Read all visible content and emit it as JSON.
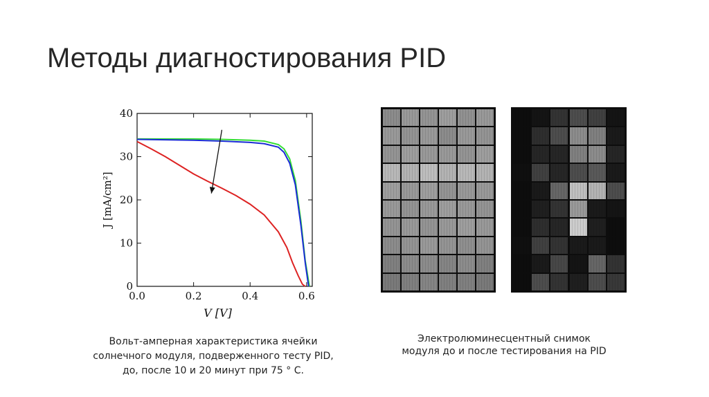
{
  "slide": {
    "title": "Методы диагностирования PID"
  },
  "captions": {
    "left_lines": [
      "Вольт-амперная характеристика ячейки",
      "солнечного модуля, подверженного тесту PID,",
      "до, после 10 и 20 минут при 75 ° С."
    ],
    "right_lines": [
      "Электролюминесцентный снимок",
      "модуля до и после тестирования на PID"
    ]
  },
  "chart_data": {
    "type": "line",
    "xlabel": "V [V]",
    "ylabel": "J [mA/cm²]",
    "xlim": [
      0.0,
      0.62
    ],
    "ylim": [
      0,
      40
    ],
    "x_ticks": [
      "0.0",
      "0.2",
      "0.4",
      "0.6"
    ],
    "y_ticks": [
      "0",
      "10",
      "20",
      "30",
      "40"
    ],
    "grid": false,
    "legend": "none",
    "annotation": "arrow from upper curves toward lower curve",
    "series": [
      {
        "color": "#33dd33",
        "x": [
          0.0,
          0.1,
          0.2,
          0.3,
          0.4,
          0.45,
          0.5,
          0.52,
          0.54,
          0.56,
          0.58,
          0.595,
          0.61
        ],
        "y": [
          34.1,
          34.1,
          34.1,
          34.0,
          33.8,
          33.6,
          32.8,
          31.8,
          29.5,
          24.5,
          15.0,
          6.0,
          0.0
        ]
      },
      {
        "color": "#1a2bd6",
        "x": [
          0.0,
          0.1,
          0.2,
          0.3,
          0.4,
          0.45,
          0.5,
          0.52,
          0.54,
          0.56,
          0.58,
          0.595,
          0.607
        ],
        "y": [
          34.0,
          33.9,
          33.8,
          33.6,
          33.3,
          33.0,
          32.2,
          31.0,
          28.5,
          23.5,
          14.0,
          5.5,
          0.0
        ]
      },
      {
        "color": "#dd2222",
        "x": [
          0.0,
          0.05,
          0.1,
          0.15,
          0.2,
          0.25,
          0.3,
          0.35,
          0.4,
          0.45,
          0.5,
          0.53,
          0.55,
          0.57,
          0.585,
          0.595
        ],
        "y": [
          33.5,
          31.8,
          30.0,
          28.0,
          26.0,
          24.3,
          22.7,
          21.0,
          19.0,
          16.5,
          12.6,
          9.0,
          5.5,
          2.5,
          0.5,
          0.0
        ]
      }
    ]
  },
  "el_images": {
    "before": {
      "rows": 10,
      "cols": 6,
      "levels": [
        0.55,
        0.6,
        0.58,
        0.62,
        0.57,
        0.6,
        0.6,
        0.58,
        0.6,
        0.55,
        0.6,
        0.58,
        0.58,
        0.62,
        0.6,
        0.6,
        0.58,
        0.62,
        0.72,
        0.7,
        0.74,
        0.7,
        0.72,
        0.7,
        0.62,
        0.6,
        0.62,
        0.58,
        0.6,
        0.6,
        0.6,
        0.58,
        0.6,
        0.62,
        0.6,
        0.58,
        0.58,
        0.6,
        0.58,
        0.6,
        0.62,
        0.6,
        0.55,
        0.58,
        0.6,
        0.58,
        0.56,
        0.58,
        0.5,
        0.55,
        0.55,
        0.52,
        0.55,
        0.5,
        0.48,
        0.5,
        0.52,
        0.5,
        0.5,
        0.48
      ]
    },
    "after": {
      "rows": 10,
      "cols": 6,
      "levels": [
        0.05,
        0.08,
        0.2,
        0.3,
        0.25,
        0.08,
        0.05,
        0.18,
        0.3,
        0.55,
        0.5,
        0.1,
        0.05,
        0.15,
        0.15,
        0.5,
        0.55,
        0.15,
        0.06,
        0.25,
        0.15,
        0.3,
        0.35,
        0.1,
        0.05,
        0.1,
        0.4,
        0.75,
        0.7,
        0.3,
        0.05,
        0.12,
        0.2,
        0.6,
        0.1,
        0.08,
        0.05,
        0.18,
        0.15,
        0.8,
        0.12,
        0.05,
        0.06,
        0.25,
        0.2,
        0.1,
        0.1,
        0.05,
        0.05,
        0.1,
        0.28,
        0.08,
        0.4,
        0.2,
        0.05,
        0.3,
        0.2,
        0.12,
        0.3,
        0.22
      ]
    }
  }
}
